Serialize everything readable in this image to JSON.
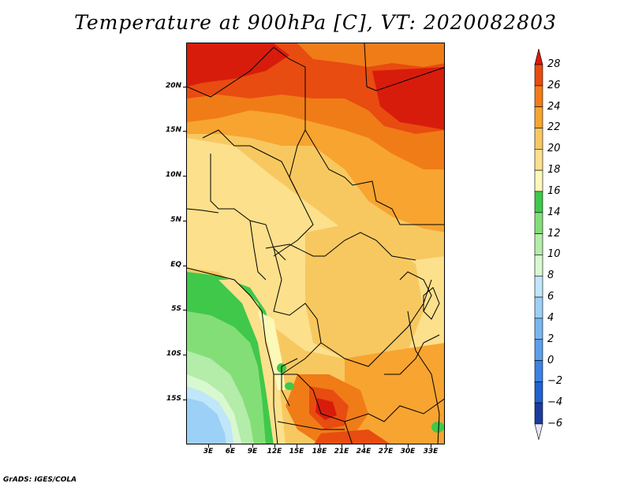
{
  "title": "Temperature at 900hPa [C], VT: 2020082803",
  "footer": "GrADS: IGES/COLA",
  "chart_data": {
    "type": "heatmap",
    "title": "Temperature at 900hPa [C], VT: 2020082803",
    "units": "C",
    "lon_ticks": [
      "3E",
      "6E",
      "9E",
      "12E",
      "15E",
      "18E",
      "21E",
      "24E",
      "27E",
      "30E",
      "33E"
    ],
    "lat_ticks": [
      "20N",
      "15N",
      "10N",
      "5N",
      "EQ",
      "5S",
      "10S",
      "15S"
    ],
    "lon_range": [
      0,
      35
    ],
    "lat_range": [
      -19.5,
      25
    ],
    "colorbar": {
      "levels": [
        -6,
        -4,
        -2,
        0,
        2,
        4,
        6,
        8,
        10,
        12,
        14,
        16,
        18,
        20,
        22,
        24,
        26,
        28
      ],
      "colors": [
        "#0c0c70",
        "#1c3c9c",
        "#2060d0",
        "#3c82e6",
        "#5aa0ec",
        "#78b8f0",
        "#9cd0f6",
        "#c0e6fa",
        "#d8f8d0",
        "#b4ecaa",
        "#84de78",
        "#40c84a",
        "#fcf8b8",
        "#fce08c",
        "#f8c860",
        "#f8a430",
        "#f07c18",
        "#e84c10",
        "#d81c0c"
      ],
      "extend": "both"
    },
    "field_description": "hot 24-28 C over north (Sahara/Sudan); 18-22 C over central and equatorial Africa; 10-16 C along the southwest Atlantic coast (Angola/Namibia); local 26 C pocket over Zambia/Zimbabwe around 15-18S, 18-21E"
  }
}
